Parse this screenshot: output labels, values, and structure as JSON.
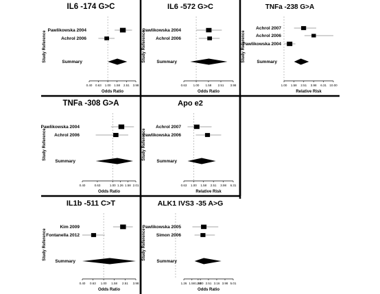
{
  "chart_data": [
    {
      "type": "forest",
      "title": "IL6 -174 G>C",
      "xlabel": "Odds Ratio",
      "ylabel": "Study Reference",
      "xscale": "log",
      "xticks": [
        "0.40",
        "0.63",
        "1.00",
        "1.58",
        "2.51",
        "3.98"
      ],
      "studies": [
        {
          "name": "Pawlikowska 2004",
          "estimate": 2.1,
          "lower": 1.4,
          "upper": 3.3,
          "weight": 0.55
        },
        {
          "name": "Achrol 2006",
          "estimate": 0.95,
          "lower": 0.63,
          "upper": 1.4,
          "weight": 0.35
        }
      ],
      "summary": {
        "label": "Summary",
        "estimate": 1.6,
        "lower": 1.0,
        "upper": 2.6
      }
    },
    {
      "type": "forest",
      "title": "IL6 -572 G>C",
      "xlabel": "Odds Ratio",
      "ylabel": "Study Reference",
      "xscale": "log",
      "xticks": [
        "0.63",
        "1.00",
        "1.58",
        "2.51",
        "3.98"
      ],
      "studies": [
        {
          "name": "Pawlikowska 2004",
          "estimate": 1.6,
          "lower": 1.0,
          "upper": 2.6,
          "weight": 0.5
        },
        {
          "name": "Achrol 2006",
          "estimate": 1.65,
          "lower": 1.1,
          "upper": 2.4,
          "weight": 0.35
        }
      ],
      "summary": {
        "label": "Summary",
        "estimate": 1.6,
        "lower": 0.8,
        "upper": 3.2
      }
    },
    {
      "type": "forest",
      "title": "TNFa -238 G>A",
      "xlabel": "Relative Risk",
      "ylabel": "Study Reference",
      "xscale": "log",
      "xticks": [
        "1.00",
        "1.58",
        "2.51",
        "3.98",
        "6.31",
        "10.00"
      ],
      "studies": [
        {
          "name": "Achrol 2007",
          "estimate": 2.5,
          "lower": 1.6,
          "upper": 4.5,
          "weight": 0.4
        },
        {
          "name": "Achrol 2006",
          "estimate": 4.0,
          "lower": 2.6,
          "upper": 10.0,
          "weight": 0.3
        },
        {
          "name": "Pawlikowska 2004",
          "estimate": 1.3,
          "lower": 1.0,
          "upper": 1.7,
          "weight": 0.5
        }
      ],
      "summary": {
        "label": "Summary",
        "estimate": 2.2,
        "lower": 1.6,
        "upper": 3.2
      }
    },
    {
      "type": "forest",
      "title": "TNFa -308 G>A",
      "xlabel": "Odds Ratio",
      "ylabel": "Study Reference",
      "xscale": "log",
      "xticks": [
        "0.40",
        "0.63",
        "1.00",
        "1.26",
        "1.58",
        "2.01"
      ],
      "studies": [
        {
          "name": "Pawlikowska 2004",
          "estimate": 1.3,
          "lower": 0.95,
          "upper": 1.9,
          "weight": 0.55
        },
        {
          "name": "Achrol 2006",
          "estimate": 1.1,
          "lower": 0.6,
          "upper": 1.6,
          "weight": 0.45
        }
      ],
      "summary": {
        "label": "Summary",
        "estimate": 1.15,
        "lower": 0.6,
        "upper": 1.85
      }
    },
    {
      "type": "forest",
      "title": "Apo e2",
      "xlabel": "Relative Risk",
      "ylabel": "Study Reference",
      "xscale": "log",
      "xticks": [
        "0.63",
        "1.00",
        "1.58",
        "2.51",
        "3.98",
        "6.31"
      ],
      "studies": [
        {
          "name": "Achrol 2007",
          "estimate": 1.15,
          "lower": 0.75,
          "upper": 2.3,
          "weight": 0.5
        },
        {
          "name": "Pawlikowska 2006",
          "estimate": 1.9,
          "lower": 1.1,
          "upper": 3.6,
          "weight": 0.4
        }
      ],
      "summary": {
        "label": "Summary",
        "estimate": 1.45,
        "lower": 0.75,
        "upper": 2.8
      }
    },
    {
      "type": "forest",
      "title": "IL1b -511 C>T",
      "xlabel": "Odds Ratio",
      "ylabel": "Study Reference",
      "xscale": "log",
      "xticks": [
        "0.40",
        "0.63",
        "1.00",
        "1.58",
        "2.51",
        "3.98"
      ],
      "studies": [
        {
          "name": "Kim 2009",
          "estimate": 2.3,
          "lower": 1.5,
          "upper": 3.5,
          "weight": 0.55
        },
        {
          "name": "Fontanella 2012",
          "estimate": 0.65,
          "lower": 0.4,
          "upper": 1.05,
          "weight": 0.4
        }
      ],
      "summary": {
        "label": "Summary",
        "estimate": 1.3,
        "lower": 0.4,
        "upper": 3.98
      }
    },
    {
      "type": "forest",
      "title": "ALK1 IVS3 -35 A>G",
      "xlabel": "Odds Ratio",
      "ylabel": "Study Reference",
      "xscale": "log",
      "xticks": [
        "1.26",
        "1.58",
        "1.88",
        "2.00",
        "2.51",
        "3.16",
        "3.98",
        "5.01"
      ],
      "studies": [
        {
          "name": "Pawlikowska 2005",
          "estimate": 2.2,
          "lower": 1.6,
          "upper": 3.3,
          "weight": 0.5
        },
        {
          "name": "Simon 2006",
          "estimate": 2.15,
          "lower": 1.7,
          "upper": 3.0,
          "weight": 0.4
        }
      ],
      "summary": {
        "label": "Summary",
        "estimate": 2.2,
        "lower": 1.7,
        "upper": 3.6
      }
    }
  ]
}
